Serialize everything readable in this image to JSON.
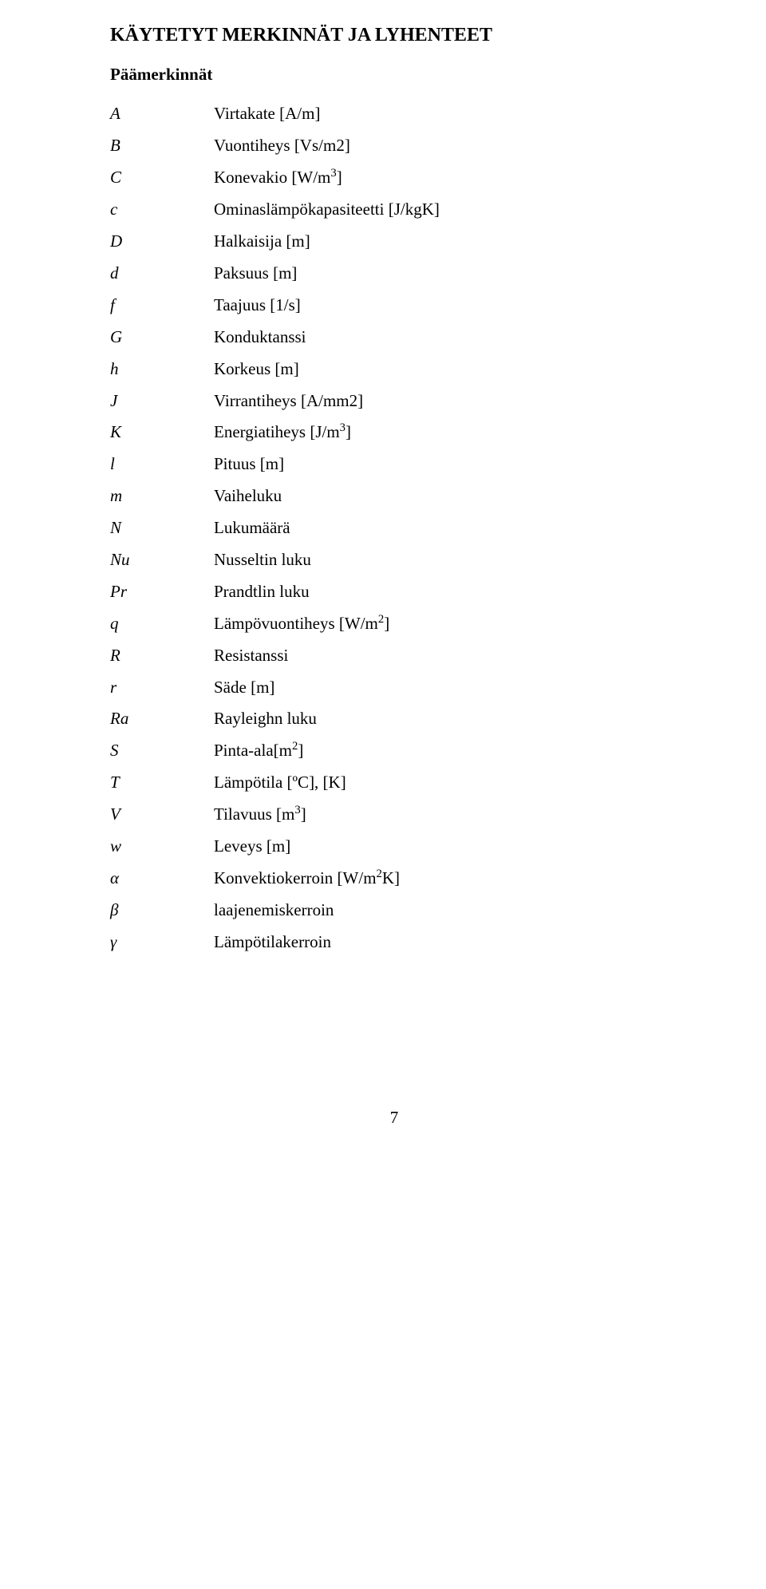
{
  "title": "KÄYTETYT MERKINNÄT JA LYHENTEET",
  "subtitle": "Päämerkinnät",
  "rows": [
    {
      "sym": "A",
      "desc": "Virtakate [A/m]"
    },
    {
      "sym": "B",
      "desc": "Vuontiheys [Vs/m2]"
    },
    {
      "sym": "C",
      "desc_html": "Konevakio [W/m<sup>3</sup>]"
    },
    {
      "sym": "c",
      "desc": "Ominaslämpökapasiteetti [J/kgK]"
    },
    {
      "sym": "D",
      "desc": "Halkaisija [m]"
    },
    {
      "sym": "d",
      "desc": "Paksuus [m]"
    },
    {
      "sym": "f",
      "desc": "Taajuus [1/s]"
    },
    {
      "sym": "G",
      "desc": "Konduktanssi"
    },
    {
      "sym": "h",
      "desc": "Korkeus [m]"
    },
    {
      "sym": "J",
      "desc": "Virrantiheys [A/mm2]"
    },
    {
      "sym": "K",
      "desc_html": "Energiatiheys [J/m<sup>3</sup>]"
    },
    {
      "sym": "l",
      "desc": "Pituus [m]"
    },
    {
      "sym": "m",
      "desc": "Vaiheluku"
    },
    {
      "sym": "N",
      "desc": "Lukumäärä"
    },
    {
      "sym": "Nu",
      "desc": "Nusseltin luku"
    },
    {
      "sym": "Pr",
      "desc": "Prandtlin luku"
    },
    {
      "sym": "q",
      "desc_html": "Lämpövuontiheys [W/m<sup>2</sup>]"
    },
    {
      "sym": "R",
      "desc": "Resistanssi"
    },
    {
      "sym": "r",
      "desc": "Säde [m]"
    },
    {
      "sym": "Ra",
      "desc": "Rayleighn luku"
    },
    {
      "sym": "S",
      "desc_html": "Pinta-ala[m<sup>2</sup>]"
    },
    {
      "sym": "T",
      "desc": "Lämpötila [ºC], [K]"
    },
    {
      "sym": "V",
      "desc_html": "Tilavuus [m<sup>3</sup>]"
    },
    {
      "sym": "w",
      "desc": "Leveys [m]"
    },
    {
      "sym": "α",
      "desc_html": "Konvektiokerroin [W/m<sup>2</sup>K]"
    },
    {
      "sym": "β",
      "desc": "laajenemiskerroin"
    },
    {
      "sym": "γ",
      "desc": "Lämpötilakerroin"
    }
  ],
  "page_number": "7"
}
